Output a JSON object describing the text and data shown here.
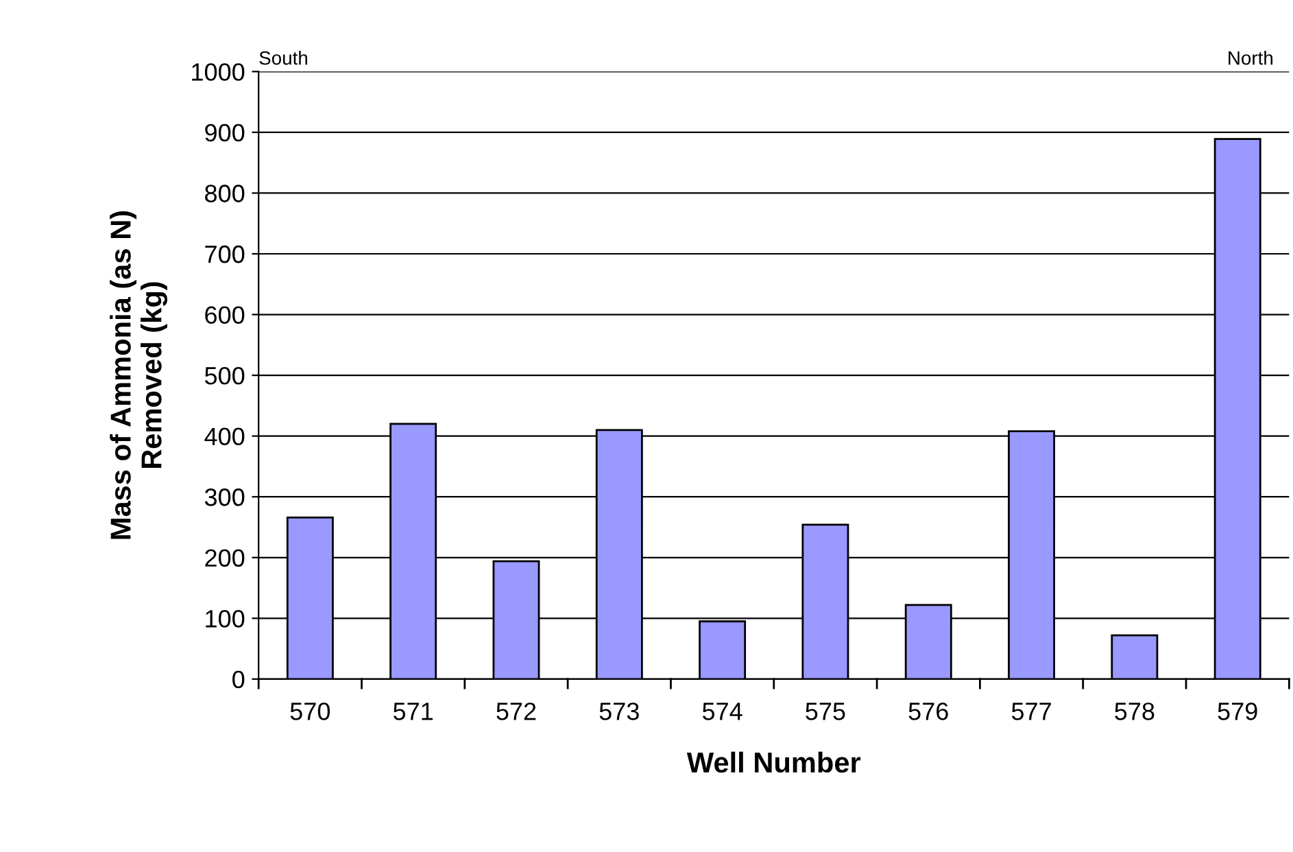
{
  "chart_data": {
    "type": "bar",
    "xlabel": "Well Number",
    "ylabel": "Mass of Ammonia (as N)\nRemoved (kg)",
    "categories": [
      "570",
      "571",
      "572",
      "573",
      "574",
      "575",
      "576",
      "577",
      "578",
      "579"
    ],
    "values": [
      266,
      420,
      194,
      410,
      95,
      254,
      122,
      408,
      72,
      889
    ],
    "color": "#9999ff",
    "ylim": [
      0,
      1000
    ],
    "yticks": [
      0,
      100,
      200,
      300,
      400,
      500,
      600,
      700,
      800,
      900,
      1000
    ],
    "grid": "y",
    "annotations": [
      "South",
      "North"
    ]
  }
}
